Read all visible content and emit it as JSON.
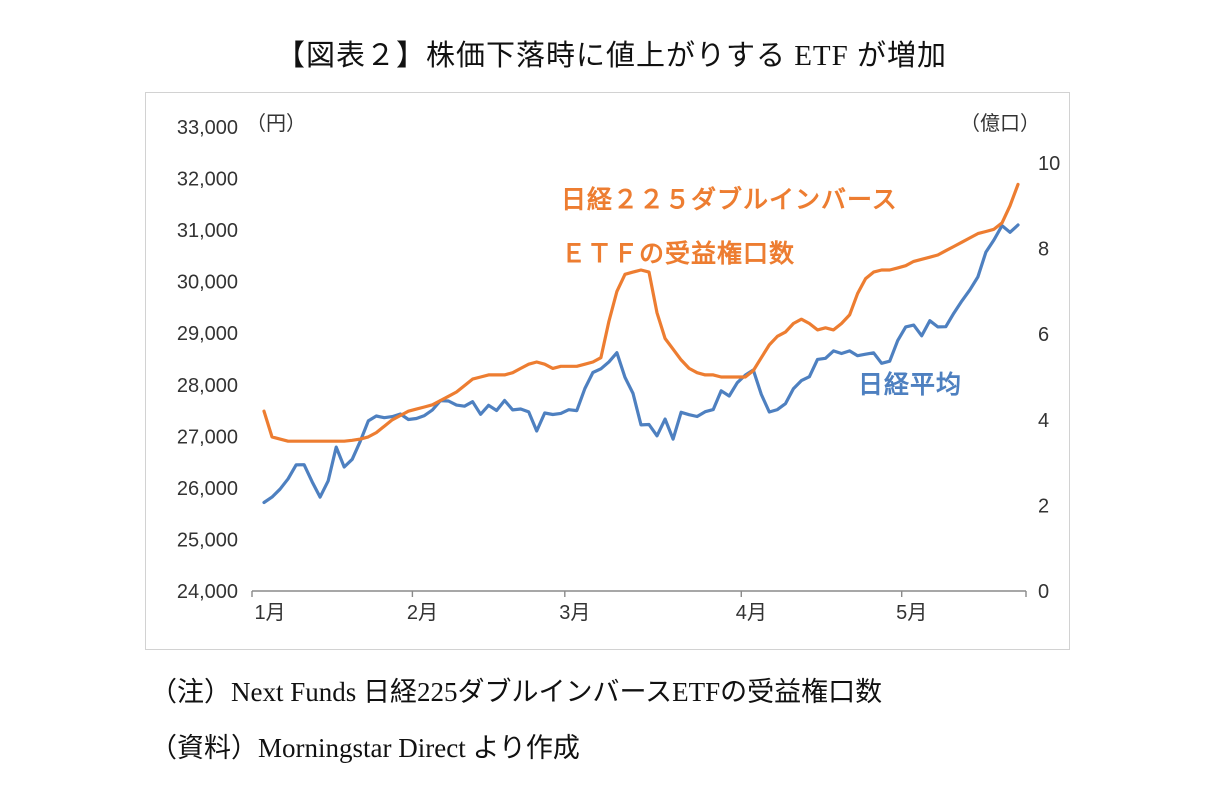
{
  "title": "【図表２】株価下落時に値上がりする ETF が増加",
  "notes": {
    "note1": "（注）Next Funds 日経225ダブルインバースETFの受益権口数",
    "note2": "（資料）Morningstar Direct より作成"
  },
  "chart_data": {
    "type": "line",
    "title": "【図表２】株価下落時に値上がりする ETF が増加",
    "left_axis": {
      "unit": "（円）",
      "min": 24000,
      "max": 33000,
      "step": 1000,
      "tick_labels": [
        "33,000",
        "32,000",
        "31,000",
        "30,000",
        "29,000",
        "28,000",
        "27,000",
        "26,000",
        "25,000",
        "24,000"
      ]
    },
    "right_axis": {
      "unit": "（億口）",
      "min": 0,
      "max": 10,
      "step": 2,
      "tick_labels": [
        "10",
        "8",
        "6",
        "4",
        "2",
        "0"
      ]
    },
    "x_axis": {
      "tick_labels": [
        "1月",
        "2月",
        "3月",
        "4月",
        "5月"
      ],
      "tick_indices": [
        0,
        19,
        38,
        60,
        80
      ]
    },
    "series": [
      {
        "id": "nikkei",
        "name": "日経平均",
        "axis": "left",
        "color": "#4e80c0",
        "label_lines": [
          "日経平均"
        ],
        "values": [
          25717,
          25821,
          25974,
          26176,
          26446,
          26449,
          26120,
          25822,
          26138,
          26791,
          26405,
          26554,
          26906,
          27299,
          27395,
          27362,
          27383,
          27433,
          27327,
          27346,
          27402,
          27510,
          27693,
          27685,
          27606,
          27584,
          27671,
          27427,
          27602,
          27502,
          27696,
          27513,
          27531,
          27473,
          27104,
          27453,
          27424,
          27445,
          27517,
          27499,
          27927,
          28238,
          28309,
          28444,
          28623,
          28144,
          27833,
          27222,
          27229,
          27011,
          27334,
          26946,
          27466,
          27420,
          27385,
          27477,
          27518,
          27884,
          27783,
          28041,
          28188,
          28287,
          27813,
          27472,
          27518,
          27633,
          27923,
          28082,
          28157,
          28493,
          28514,
          28658,
          28606,
          28657,
          28564,
          28593,
          28620,
          28416,
          28458,
          28856,
          29123,
          29158,
          28950,
          29243,
          29122,
          29126,
          29388,
          29626,
          29843,
          30093,
          30573,
          30808,
          31087,
          30958,
          31100
        ]
      },
      {
        "id": "inverse-etf-units",
        "name": "日経２２５ダブルインバースETFの受益権口数",
        "axis": "right",
        "color": "#ed7d31",
        "label_lines": [
          "日経２２５ダブルインバース",
          "ＥＴＦの受益権口数"
        ],
        "values": [
          4.2,
          3.6,
          3.55,
          3.5,
          3.5,
          3.5,
          3.5,
          3.5,
          3.5,
          3.5,
          3.5,
          3.52,
          3.55,
          3.6,
          3.7,
          3.85,
          4.0,
          4.1,
          4.2,
          4.25,
          4.3,
          4.35,
          4.45,
          4.55,
          4.65,
          4.8,
          4.95,
          5.0,
          5.05,
          5.05,
          5.05,
          5.1,
          5.2,
          5.3,
          5.35,
          5.3,
          5.2,
          5.25,
          5.25,
          5.25,
          5.3,
          5.35,
          5.45,
          6.3,
          7.0,
          7.4,
          7.45,
          7.5,
          7.45,
          6.5,
          5.9,
          5.65,
          5.4,
          5.2,
          5.1,
          5.05,
          5.05,
          5.0,
          5.0,
          5.0,
          5.0,
          5.15,
          5.45,
          5.75,
          5.95,
          6.05,
          6.25,
          6.35,
          6.25,
          6.1,
          6.15,
          6.1,
          6.25,
          6.45,
          6.95,
          7.3,
          7.45,
          7.5,
          7.5,
          7.55,
          7.6,
          7.7,
          7.75,
          7.8,
          7.85,
          7.95,
          8.05,
          8.15,
          8.25,
          8.35,
          8.4,
          8.45,
          8.6,
          9.0,
          9.5
        ]
      }
    ]
  }
}
